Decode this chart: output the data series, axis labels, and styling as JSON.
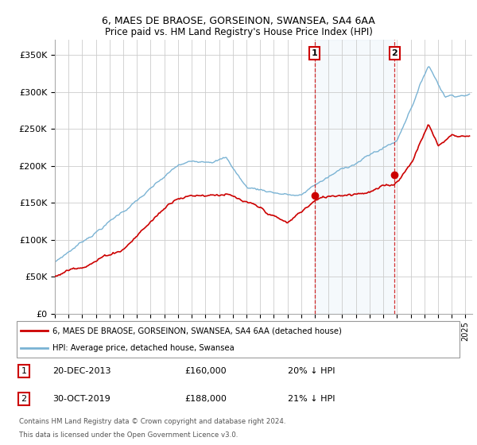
{
  "title1": "6, MAES DE BRAOSE, GORSEINON, SWANSEA, SA4 6AA",
  "title2": "Price paid vs. HM Land Registry's House Price Index (HPI)",
  "ylabel_ticks": [
    "£0",
    "£50K",
    "£100K",
    "£150K",
    "£200K",
    "£250K",
    "£300K",
    "£350K"
  ],
  "ytick_vals": [
    0,
    50000,
    100000,
    150000,
    200000,
    250000,
    300000,
    350000
  ],
  "ylim": [
    0,
    370000
  ],
  "xlim_start": 1995.0,
  "xlim_end": 2025.5,
  "hpi_color": "#7ab3d4",
  "price_color": "#cc0000",
  "vline_color": "#cc0000",
  "marker1_x": 2013.97,
  "marker2_x": 2019.83,
  "marker1_y": 160000,
  "marker2_y": 188000,
  "sale1_date": "20-DEC-2013",
  "sale1_price": "£160,000",
  "sale1_hpi": "20% ↓ HPI",
  "sale2_date": "30-OCT-2019",
  "sale2_price": "£188,000",
  "sale2_hpi": "21% ↓ HPI",
  "legend_label1": "6, MAES DE BRAOSE, GORSEINON, SWANSEA, SA4 6AA (detached house)",
  "legend_label2": "HPI: Average price, detached house, Swansea",
  "footnote1": "Contains HM Land Registry data © Crown copyright and database right 2024.",
  "footnote2": "This data is licensed under the Open Government Licence v3.0.",
  "background_shaded_start": 2013.97,
  "background_shaded_end": 2019.83
}
